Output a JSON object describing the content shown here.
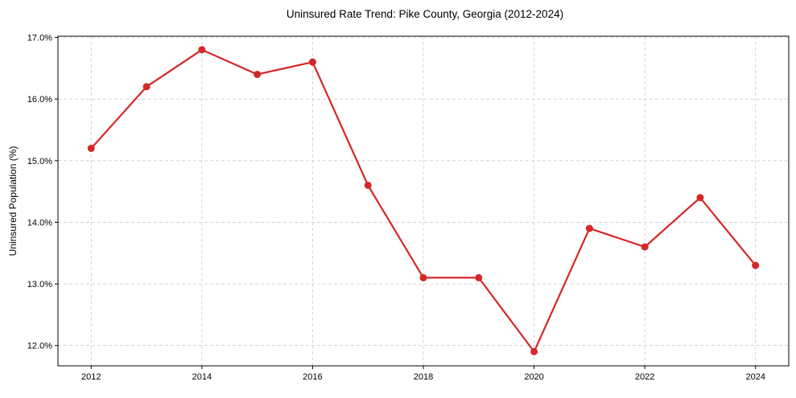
{
  "chart_data": {
    "type": "line",
    "title": "Uninsured Rate Trend: Pike County, Georgia (2012-2024)",
    "xlabel": "",
    "ylabel": "Uninsured Population (%)",
    "x": [
      2012,
      2013,
      2014,
      2015,
      2016,
      2017,
      2018,
      2019,
      2020,
      2021,
      2022,
      2023,
      2024
    ],
    "series": [
      {
        "name": "Uninsured Rate",
        "color": "#d62728",
        "values": [
          15.2,
          16.2,
          16.8,
          16.4,
          16.6,
          14.6,
          13.1,
          13.1,
          11.9,
          13.9,
          13.6,
          14.4,
          13.3
        ]
      }
    ],
    "xticks": [
      2012,
      2014,
      2016,
      2018,
      2020,
      2022,
      2024
    ],
    "xtick_labels": [
      "2012",
      "2014",
      "2016",
      "2018",
      "2020",
      "2022",
      "2024"
    ],
    "yticks": [
      12.0,
      13.0,
      14.0,
      15.0,
      16.0,
      17.0
    ],
    "ytick_labels": [
      "12.0%",
      "13.0%",
      "14.0%",
      "15.0%",
      "16.0%",
      "17.0%"
    ],
    "xlim": [
      2011.4,
      2024.6
    ],
    "ylim": [
      11.67,
      17.02
    ],
    "grid": true,
    "legend": null
  }
}
